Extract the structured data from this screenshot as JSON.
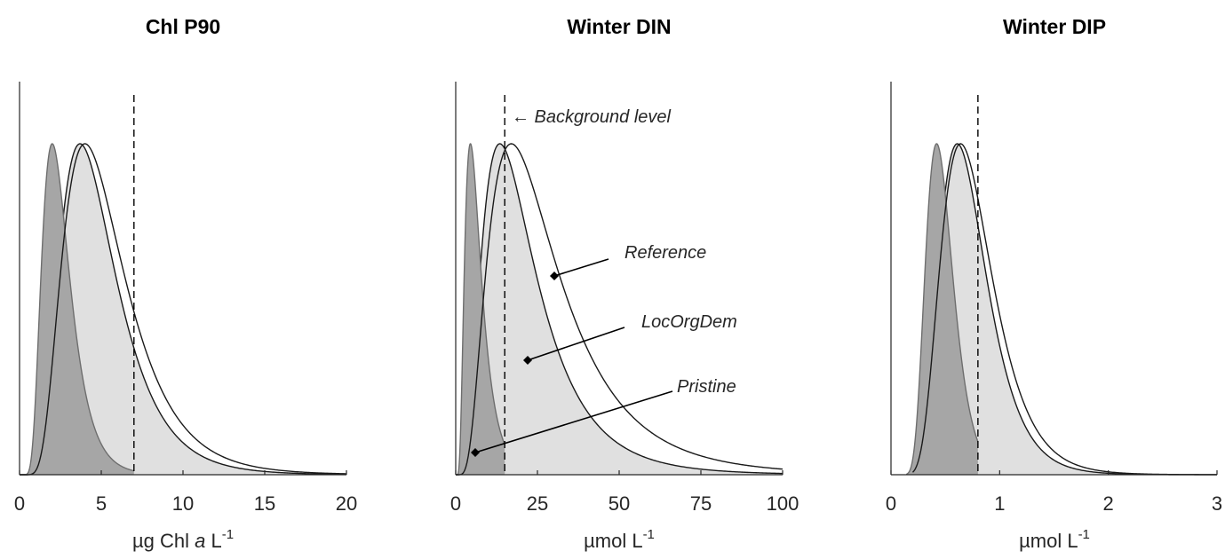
{
  "chart_data": [
    {
      "type": "area",
      "title": "Chl P90",
      "xlabel": {
        "pre": "µg Chl ",
        "italic": "a",
        "post": " L",
        "sup": "-1"
      },
      "ylabel": "",
      "xlim": [
        0,
        20
      ],
      "xticks": [
        0,
        5,
        10,
        15,
        20
      ],
      "grid": false,
      "background_level": 7,
      "series": [
        {
          "role": "pristine",
          "dist": "lognormal",
          "mode": 2.0,
          "sigma": 0.42,
          "fill": "#a6a6a6",
          "x_range": [
            0,
            7
          ]
        },
        {
          "role": "locorgdem",
          "dist": "lognormal",
          "mode": 3.7,
          "sigma": 0.46,
          "fill": "#e0e0e0",
          "x_range": [
            0,
            20
          ]
        },
        {
          "role": "reference",
          "dist": "lognormal",
          "mode": 4.0,
          "sigma": 0.47,
          "fill": "none",
          "x_range": [
            0,
            20
          ]
        }
      ]
    },
    {
      "type": "area",
      "title": "Winter DIN",
      "xlabel": {
        "pre": "µmol L",
        "italic": "",
        "post": "",
        "sup": "-1"
      },
      "ylabel": "",
      "xlim": [
        0,
        100
      ],
      "xticks": [
        0,
        25,
        50,
        75,
        100
      ],
      "grid": false,
      "background_level": 15,
      "background_label": "← Background level",
      "series": [
        {
          "role": "pristine",
          "name": "Pristine",
          "dist": "lognormal",
          "mode": 4.5,
          "sigma": 0.55,
          "fill": "#a6a6a6",
          "x_range": [
            0,
            15
          ]
        },
        {
          "role": "locorgdem",
          "name": "LocOrgDem",
          "dist": "lognormal",
          "mode": 13.5,
          "sigma": 0.6,
          "fill": "#e0e0e0",
          "x_range": [
            0,
            100
          ]
        },
        {
          "role": "reference",
          "name": "Reference",
          "dist": "lognormal",
          "mode": 17,
          "sigma": 0.62,
          "fill": "none",
          "x_range": [
            0,
            100
          ]
        }
      ]
    },
    {
      "type": "area",
      "title": "Winter DIP",
      "xlabel": {
        "pre": "µmol L",
        "italic": "",
        "post": "",
        "sup": "-1"
      },
      "ylabel": "",
      "xlim": [
        0,
        3
      ],
      "xticks": [
        0,
        1,
        2,
        3
      ],
      "grid": false,
      "background_level": 0.8,
      "series": [
        {
          "role": "pristine",
          "dist": "lognormal",
          "mode": 0.42,
          "sigma": 0.3,
          "fill": "#a6a6a6",
          "x_range": [
            0.14,
            0.8
          ]
        },
        {
          "role": "locorgdem",
          "dist": "lognormal",
          "mode": 0.61,
          "sigma": 0.36,
          "fill": "#e0e0e0",
          "x_range": [
            0.2,
            3
          ]
        },
        {
          "role": "reference",
          "dist": "lognormal",
          "mode": 0.64,
          "sigma": 0.37,
          "fill": "none",
          "x_range": [
            0.2,
            3
          ]
        }
      ]
    }
  ]
}
